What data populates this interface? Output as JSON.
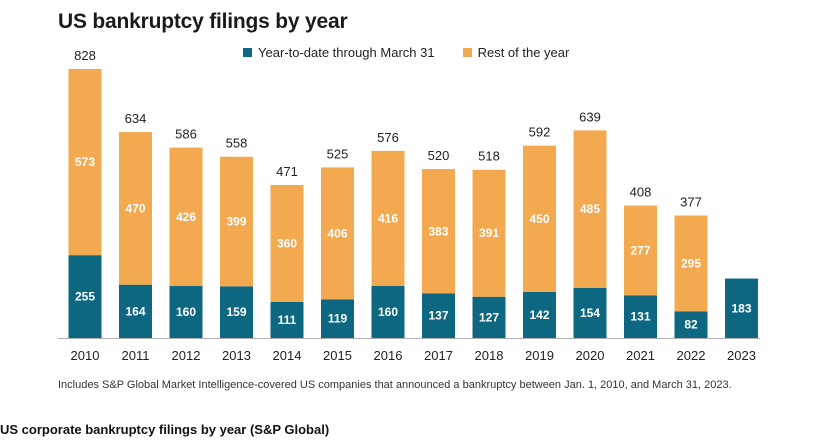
{
  "colors": {
    "ytd": "#0e6780",
    "rest": "#f2a94f",
    "axis": "#b0b0b0"
  },
  "chart_data": {
    "type": "bar",
    "stacked": true,
    "title": "US bankruptcy filings by year",
    "categories": [
      "2010",
      "2011",
      "2012",
      "2013",
      "2014",
      "2015",
      "2016",
      "2017",
      "2018",
      "2019",
      "2020",
      "2021",
      "2022",
      "2023"
    ],
    "series": [
      {
        "name": "Year-to-date through March 31",
        "values": [
          255,
          164,
          160,
          159,
          111,
          119,
          160,
          137,
          127,
          142,
          154,
          131,
          82,
          183
        ]
      },
      {
        "name": "Rest of the year",
        "values": [
          573,
          470,
          426,
          399,
          360,
          406,
          416,
          383,
          391,
          450,
          485,
          277,
          295,
          null
        ]
      }
    ],
    "totals": [
      828,
      634,
      586,
      558,
      471,
      525,
      576,
      520,
      518,
      592,
      639,
      408,
      377,
      null
    ],
    "ylim": [
      0,
      828
    ],
    "grid": false,
    "legend_position": "top"
  },
  "note": "Includes S&P Global Market Intelligence-covered US companies that announced a bankruptcy between Jan. 1, 2010, and March 31, 2023.",
  "caption": "US corporate bankruptcy filings by year (S&P Global)"
}
